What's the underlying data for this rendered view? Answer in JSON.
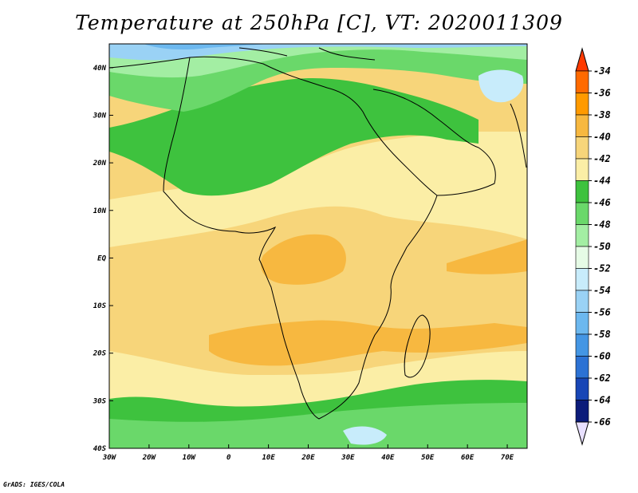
{
  "title": "Temperature at 250hPa [C], VT: 2020011309",
  "credit": "GrADS: IGES/COLA",
  "map": {
    "lon_range": [
      -30,
      75
    ],
    "lat_range": [
      -40,
      45
    ],
    "lon_ticks": [
      {
        "value": -30,
        "label": "30W"
      },
      {
        "value": -20,
        "label": "20W"
      },
      {
        "value": -10,
        "label": "10W"
      },
      {
        "value": 0,
        "label": "0"
      },
      {
        "value": 10,
        "label": "10E"
      },
      {
        "value": 20,
        "label": "20E"
      },
      {
        "value": 30,
        "label": "30E"
      },
      {
        "value": 40,
        "label": "40E"
      },
      {
        "value": 50,
        "label": "50E"
      },
      {
        "value": 60,
        "label": "60E"
      },
      {
        "value": 70,
        "label": "70E"
      }
    ],
    "lat_ticks": [
      {
        "value": 40,
        "label": "40N"
      },
      {
        "value": 30,
        "label": "30N"
      },
      {
        "value": 20,
        "label": "20N"
      },
      {
        "value": 10,
        "label": "10N"
      },
      {
        "value": 0,
        "label": "EQ"
      },
      {
        "value": -10,
        "label": "10S"
      },
      {
        "value": -20,
        "label": "20S"
      },
      {
        "value": -30,
        "label": "30S"
      },
      {
        "value": -40,
        "label": "40S"
      }
    ]
  },
  "colorbar": {
    "labels": [
      "-34",
      "-36",
      "-38",
      "-40",
      "-42",
      "-44",
      "-46",
      "-48",
      "-50",
      "-52",
      "-54",
      "-56",
      "-58",
      "-60",
      "-62",
      "-64",
      "-66"
    ],
    "colors": [
      "#ff3a00",
      "#ff6a00",
      "#ff9a00",
      "#f7b840",
      "#f7d57a",
      "#fbeea6",
      "#3ec23e",
      "#6ad86a",
      "#a3eea3",
      "#e6fbe6",
      "#c8ecfb",
      "#9ad2f5",
      "#6cb8ef",
      "#4496e4",
      "#2c72d4",
      "#1846b6",
      "#0c1c7a",
      "#e8e0ff"
    ]
  }
}
